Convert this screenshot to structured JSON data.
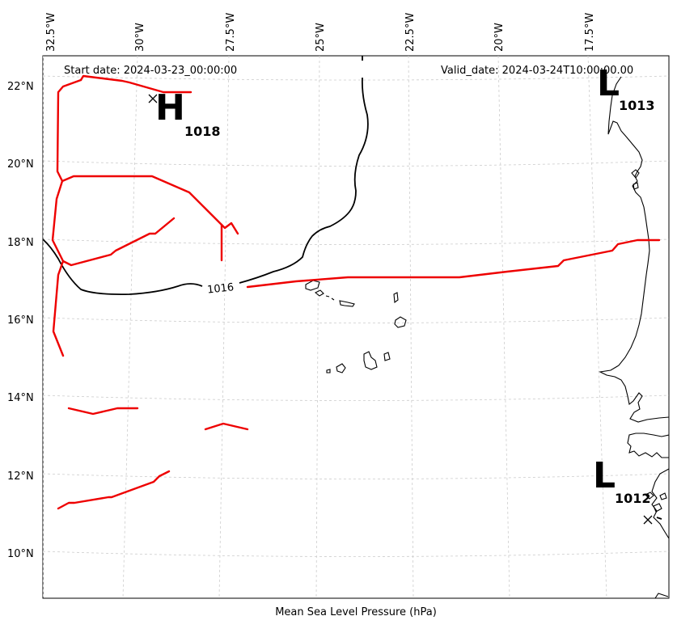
{
  "header": {
    "start_date": "Start date: 2024-03-23_00:00:00",
    "valid_date": "Valid_date: 2024-03-24T10:00:00.00"
  },
  "caption": "Mean Sea Level Pressure (hPa)",
  "lon_ticks": [
    "32.5°W",
    "30°W",
    "27.5°W",
    "25°W",
    "22.5°W",
    "20°W",
    "17.5°W"
  ],
  "lat_ticks": [
    "22°N",
    "20°N",
    "18°N",
    "16°N",
    "14°N",
    "12°N",
    "10°N"
  ],
  "isobar_label": "1016",
  "pressure_centers": [
    {
      "type": "H",
      "value": "1018"
    },
    {
      "type": "L",
      "value": "1013"
    },
    {
      "type": "L",
      "value": "1012"
    }
  ],
  "colors": {
    "fronts": "#ee0000",
    "isobars": "#000000",
    "coastline": "#000000",
    "grid": "#cccccc"
  }
}
